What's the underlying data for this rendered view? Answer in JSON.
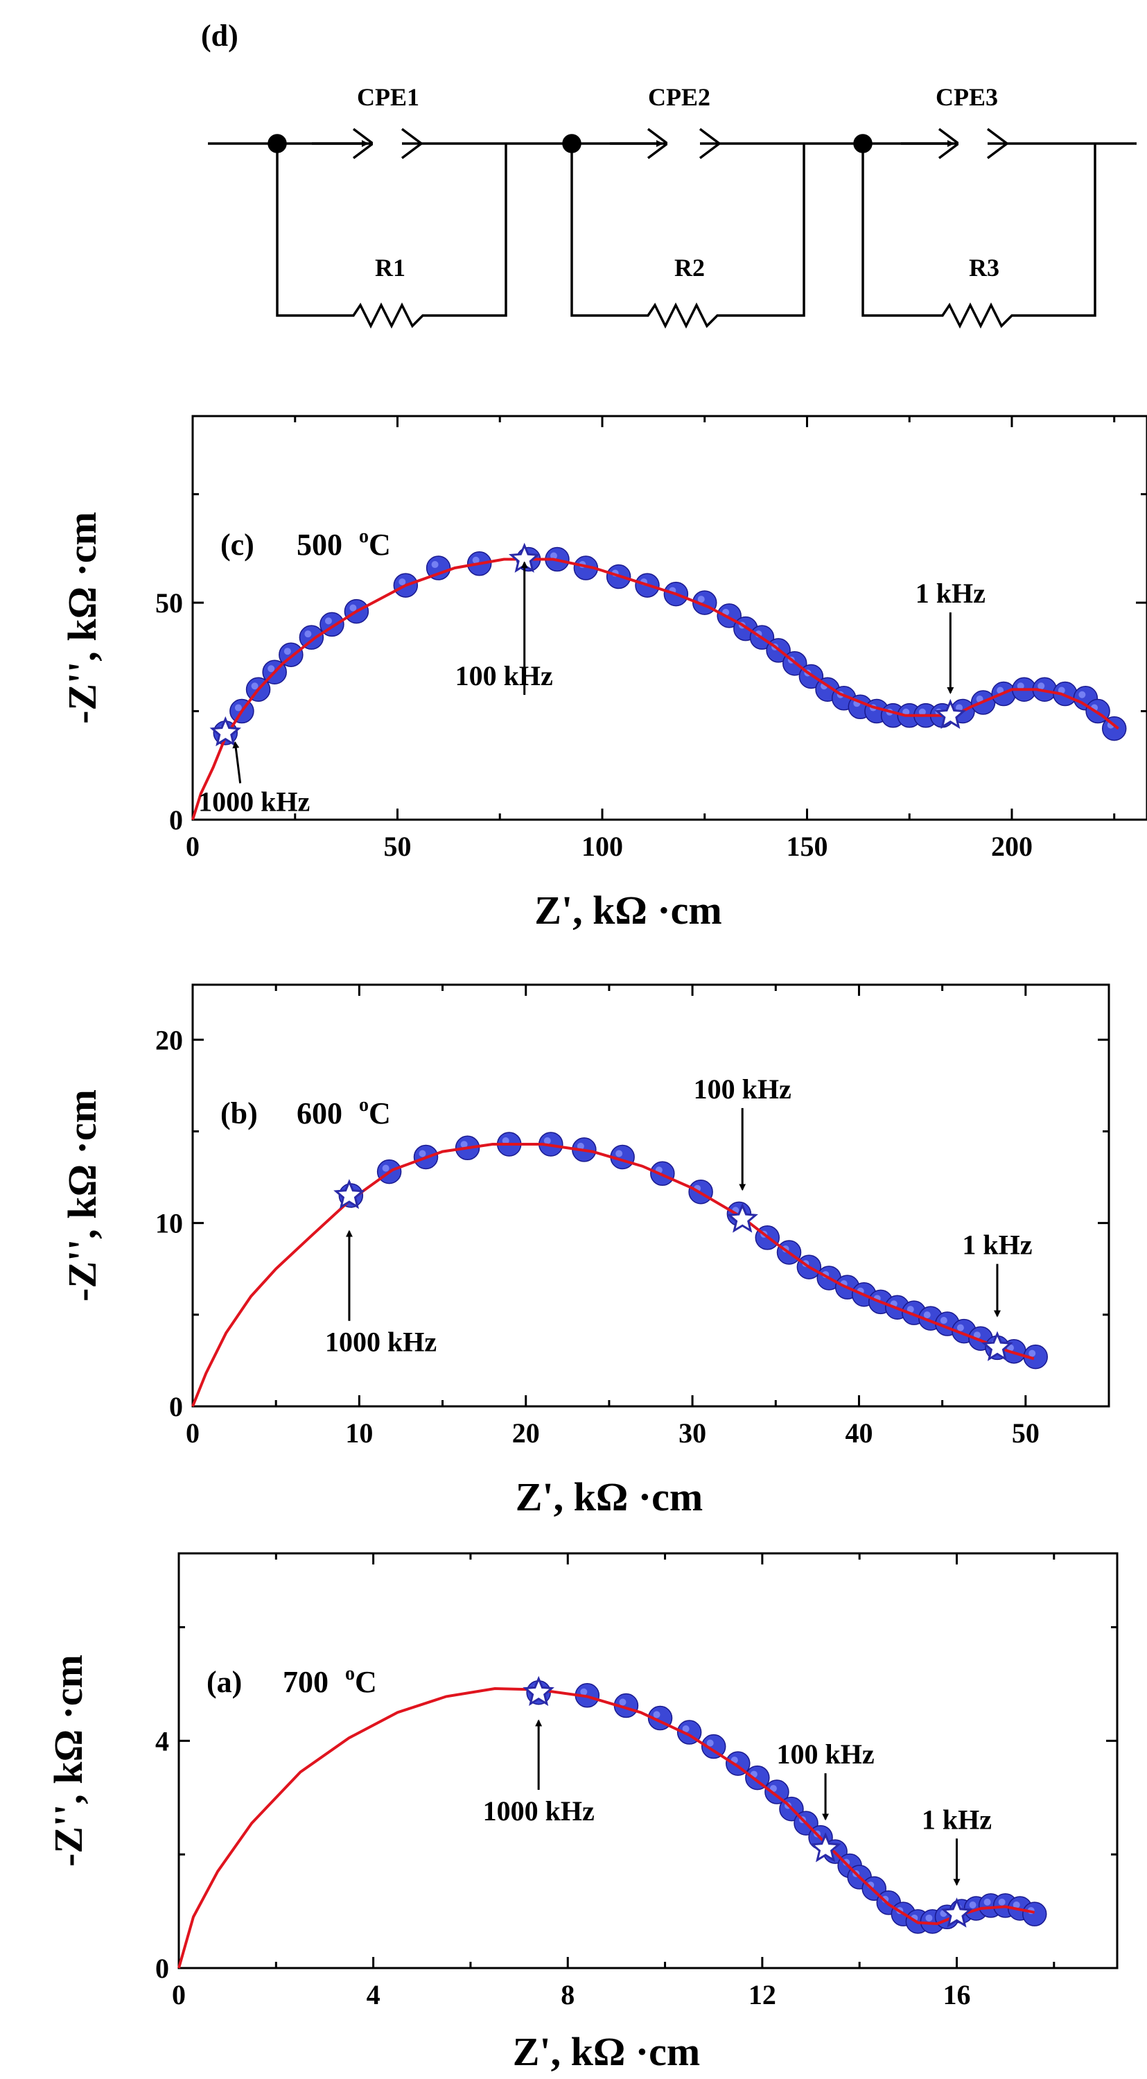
{
  "colors": {
    "axis": "#000000",
    "fit_line": "#e0141e",
    "marker_fill": "#3b47d6",
    "marker_edge": "#1a1a8f",
    "star_fill": "#ffffff",
    "star_edge": "#2a2aa8"
  },
  "circuit": {
    "panel_label": "(d)",
    "elements": [
      {
        "cpe": "CPE1",
        "r": "R1"
      },
      {
        "cpe": "CPE2",
        "r": "R2"
      },
      {
        "cpe": "CPE3",
        "r": "R3"
      }
    ]
  },
  "chart_data": [
    {
      "id": "c",
      "type": "scatter",
      "panel_label": "(c)",
      "temperature": "500",
      "temp_unit": "oC",
      "xlabel": "Z', kΩ ·cm",
      "ylabel": "-Z'', kΩ ·cm",
      "xlim": [
        0,
        233
      ],
      "ylim": [
        0,
        93
      ],
      "xticks": [
        0,
        50,
        100,
        150,
        200
      ],
      "yticks": [
        0,
        50
      ],
      "points": [
        [
          8,
          20
        ],
        [
          12,
          25
        ],
        [
          16,
          30
        ],
        [
          20,
          34
        ],
        [
          24,
          38
        ],
        [
          29,
          42
        ],
        [
          34,
          45
        ],
        [
          40,
          48
        ],
        [
          52,
          54
        ],
        [
          60,
          58
        ],
        [
          70,
          59
        ],
        [
          82,
          60
        ],
        [
          89,
          60
        ],
        [
          96,
          58
        ],
        [
          104,
          56
        ],
        [
          111,
          54
        ],
        [
          118,
          52
        ],
        [
          125,
          50
        ],
        [
          131,
          47
        ],
        [
          135,
          44
        ],
        [
          139,
          42
        ],
        [
          143,
          39
        ],
        [
          147,
          36
        ],
        [
          151,
          33
        ],
        [
          155,
          30
        ],
        [
          159,
          28
        ],
        [
          163,
          26
        ],
        [
          167,
          25
        ],
        [
          171,
          24
        ],
        [
          175,
          24
        ],
        [
          179,
          24
        ],
        [
          183,
          24
        ],
        [
          188,
          25
        ],
        [
          193,
          27
        ],
        [
          198,
          29
        ],
        [
          203,
          30
        ],
        [
          208,
          30
        ],
        [
          213,
          29
        ],
        [
          218,
          28
        ],
        [
          221,
          25
        ],
        [
          225,
          21
        ]
      ],
      "fit": [
        [
          0,
          0
        ],
        [
          2,
          6
        ],
        [
          5,
          12
        ],
        [
          8,
          19
        ],
        [
          12,
          25
        ],
        [
          16,
          30
        ],
        [
          22,
          36
        ],
        [
          30,
          42
        ],
        [
          40,
          48
        ],
        [
          52,
          54
        ],
        [
          64,
          58
        ],
        [
          76,
          60
        ],
        [
          88,
          60
        ],
        [
          98,
          58
        ],
        [
          108,
          55
        ],
        [
          118,
          52
        ],
        [
          126,
          49
        ],
        [
          134,
          45
        ],
        [
          142,
          40
        ],
        [
          150,
          34
        ],
        [
          158,
          29
        ],
        [
          166,
          26
        ],
        [
          174,
          24
        ],
        [
          182,
          24
        ],
        [
          186,
          24
        ],
        [
          190,
          26
        ],
        [
          195,
          28
        ],
        [
          200,
          30
        ],
        [
          206,
          30
        ],
        [
          212,
          29
        ],
        [
          217,
          27
        ],
        [
          222,
          24
        ],
        [
          226,
          21
        ]
      ],
      "stars": [
        [
          8,
          20
        ],
        [
          81,
          60
        ],
        [
          185,
          24
        ]
      ],
      "annotations": [
        {
          "text": "1000 kHz",
          "x": 8,
          "y": 20,
          "tx": 15,
          "ty": 2,
          "dir": "arrow-up-left"
        },
        {
          "text": "100 kHz",
          "x": 81,
          "y": 57,
          "tx": 76,
          "ty": 31,
          "dir": "arrow-down"
        },
        {
          "text": "1 kHz",
          "x": 185,
          "y": 27,
          "tx": 185,
          "ty": 50,
          "dir": "arrow-down-from-top"
        }
      ]
    },
    {
      "id": "b",
      "type": "scatter",
      "panel_label": "(b)",
      "temperature": "600",
      "temp_unit": "oC",
      "xlabel": "Z', kΩ ·cm",
      "ylabel": "-Z'', kΩ ·cm",
      "xlim": [
        0,
        55
      ],
      "ylim": [
        0,
        23
      ],
      "xticks": [
        0,
        10,
        20,
        30,
        40,
        50
      ],
      "yticks": [
        0,
        10,
        20
      ],
      "points": [
        [
          9.5,
          11.5
        ],
        [
          11.8,
          12.8
        ],
        [
          14,
          13.6
        ],
        [
          16.5,
          14.1
        ],
        [
          19,
          14.3
        ],
        [
          21.5,
          14.3
        ],
        [
          23.5,
          14.0
        ],
        [
          25.8,
          13.6
        ],
        [
          28.2,
          12.7
        ],
        [
          30.5,
          11.7
        ],
        [
          32.8,
          10.5
        ],
        [
          34.5,
          9.2
        ],
        [
          35.8,
          8.4
        ],
        [
          37.0,
          7.6
        ],
        [
          38.2,
          7.0
        ],
        [
          39.3,
          6.5
        ],
        [
          40.3,
          6.1
        ],
        [
          41.3,
          5.7
        ],
        [
          42.3,
          5.4
        ],
        [
          43.3,
          5.1
        ],
        [
          44.3,
          4.8
        ],
        [
          45.3,
          4.5
        ],
        [
          46.3,
          4.1
        ],
        [
          47.3,
          3.7
        ],
        [
          48.3,
          3.2
        ],
        [
          49.3,
          3.0
        ],
        [
          50.6,
          2.7
        ]
      ],
      "fit": [
        [
          0,
          0
        ],
        [
          0.8,
          1.8
        ],
        [
          2,
          4
        ],
        [
          3.5,
          6
        ],
        [
          5,
          7.5
        ],
        [
          7,
          9.2
        ],
        [
          9.4,
          11.2
        ],
        [
          12,
          12.9
        ],
        [
          15,
          13.9
        ],
        [
          18,
          14.3
        ],
        [
          21,
          14.3
        ],
        [
          24,
          13.9
        ],
        [
          27,
          13.1
        ],
        [
          30,
          11.9
        ],
        [
          33,
          10.3
        ],
        [
          35,
          8.9
        ],
        [
          37,
          7.6
        ],
        [
          39,
          6.6
        ],
        [
          41,
          5.8
        ],
        [
          43,
          5.1
        ],
        [
          45,
          4.4
        ],
        [
          47,
          3.7
        ],
        [
          49,
          3.0
        ],
        [
          50.5,
          2.6
        ]
      ],
      "stars": [
        [
          9.4,
          11.5
        ],
        [
          33,
          10.2
        ],
        [
          48.3,
          3.2
        ]
      ],
      "annotations": [
        {
          "text": "1000 kHz",
          "x": 9.4,
          "y": 10.0,
          "tx": 11.3,
          "ty": 3.0,
          "dir": "arrow-up"
        },
        {
          "text": "100 kHz",
          "x": 33,
          "y": 11.3,
          "tx": 33,
          "ty": 16.8,
          "dir": "arrow-down-from-top"
        },
        {
          "text": "1 kHz",
          "x": 48.3,
          "y": 4.4,
          "tx": 48.3,
          "ty": 8.3,
          "dir": "arrow-down-from-top"
        }
      ]
    },
    {
      "id": "a",
      "type": "scatter",
      "panel_label": "(a)",
      "temperature": "700",
      "temp_unit": "oC",
      "xlabel": "Z', kΩ ·cm",
      "ylabel": "-Z'', kΩ ·cm",
      "xlim": [
        0,
        19.3
      ],
      "ylim": [
        0,
        7.3
      ],
      "xticks": [
        0,
        4,
        8,
        12,
        16
      ],
      "yticks": [
        0,
        4
      ],
      "points": [
        [
          7.4,
          4.85
        ],
        [
          8.4,
          4.8
        ],
        [
          9.2,
          4.62
        ],
        [
          9.9,
          4.4
        ],
        [
          10.5,
          4.15
        ],
        [
          11.0,
          3.9
        ],
        [
          11.5,
          3.6
        ],
        [
          11.9,
          3.35
        ],
        [
          12.3,
          3.1
        ],
        [
          12.6,
          2.8
        ],
        [
          12.9,
          2.55
        ],
        [
          13.2,
          2.3
        ],
        [
          13.5,
          2.05
        ],
        [
          13.8,
          1.8
        ],
        [
          14.0,
          1.6
        ],
        [
          14.3,
          1.4
        ],
        [
          14.6,
          1.15
        ],
        [
          14.9,
          0.95
        ],
        [
          15.2,
          0.82
        ],
        [
          15.5,
          0.82
        ],
        [
          15.8,
          0.9
        ],
        [
          16.1,
          1.0
        ],
        [
          16.4,
          1.05
        ],
        [
          16.7,
          1.1
        ],
        [
          17.0,
          1.1
        ],
        [
          17.3,
          1.05
        ],
        [
          17.6,
          0.95
        ]
      ],
      "fit": [
        [
          0,
          0
        ],
        [
          0.3,
          0.9
        ],
        [
          0.8,
          1.7
        ],
        [
          1.5,
          2.55
        ],
        [
          2.5,
          3.45
        ],
        [
          3.5,
          4.05
        ],
        [
          4.5,
          4.5
        ],
        [
          5.5,
          4.78
        ],
        [
          6.5,
          4.92
        ],
        [
          7.4,
          4.9
        ],
        [
          8.4,
          4.78
        ],
        [
          9.5,
          4.5
        ],
        [
          10.5,
          4.1
        ],
        [
          11.5,
          3.55
        ],
        [
          12.5,
          2.9
        ],
        [
          13.3,
          2.2
        ],
        [
          14.0,
          1.6
        ],
        [
          14.6,
          1.12
        ],
        [
          15.2,
          0.8
        ],
        [
          15.6,
          0.78
        ],
        [
          16.0,
          0.92
        ],
        [
          16.5,
          1.05
        ],
        [
          17.0,
          1.08
        ],
        [
          17.6,
          0.98
        ]
      ],
      "stars": [
        [
          7.4,
          4.85
        ],
        [
          13.3,
          2.1
        ],
        [
          16.0,
          0.95
        ]
      ],
      "annotations": [
        {
          "text": "1000 kHz",
          "x": 7.4,
          "y": 4.5,
          "tx": 7.4,
          "ty": 2.6,
          "dir": "arrow-up"
        },
        {
          "text": "100 kHz",
          "x": 13.3,
          "y": 2.45,
          "tx": 13.3,
          "ty": 3.6,
          "dir": "arrow-down-from-top"
        },
        {
          "text": "1 kHz",
          "x": 16.0,
          "y": 1.3,
          "tx": 16.0,
          "ty": 2.45,
          "dir": "arrow-down-from-top"
        }
      ]
    }
  ]
}
